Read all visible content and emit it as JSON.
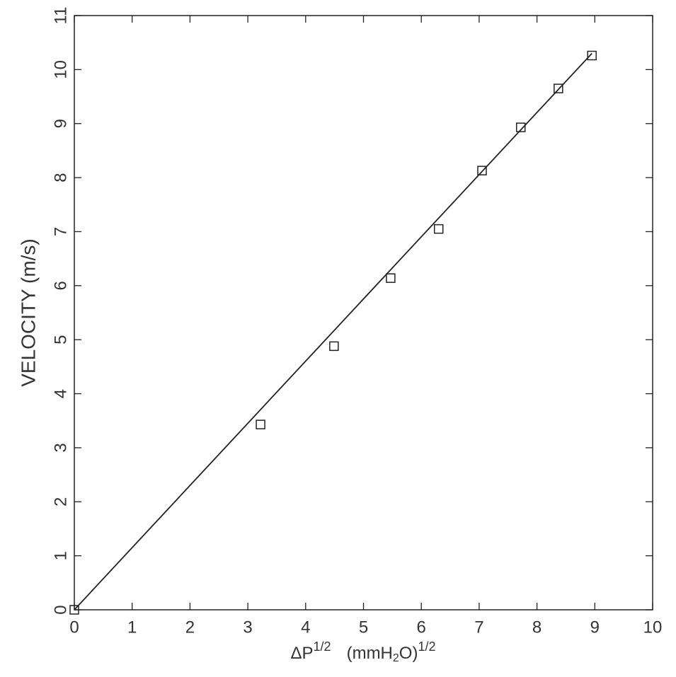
{
  "chart_data": {
    "type": "scatter",
    "x_label": [
      "ΔP",
      "1/2",
      "(mmH",
      "2",
      "O)",
      "1/2"
    ],
    "y_label": "VELOCITY (m/s)",
    "xlim": [
      0,
      10
    ],
    "xticks": [
      0,
      1,
      2,
      3,
      4,
      5,
      6,
      7,
      8,
      9,
      10
    ],
    "ylim": [
      0,
      11
    ],
    "yticks": [
      0,
      1,
      2,
      3,
      4,
      5,
      6,
      7,
      8,
      9,
      10,
      11
    ],
    "grid": false,
    "series": [
      {
        "marker": "square",
        "color": "#222222",
        "x": [
          0,
          3.22,
          4.49,
          5.47,
          6.3,
          7.05,
          7.72,
          8.37,
          8.95
        ],
        "y": [
          0,
          3.43,
          4.88,
          6.14,
          7.05,
          8.13,
          8.93,
          9.65,
          10.26
        ]
      },
      {
        "marker": "line",
        "color": "#222222",
        "x": [
          0,
          8.95
        ],
        "y": [
          0,
          10.3
        ]
      }
    ]
  }
}
